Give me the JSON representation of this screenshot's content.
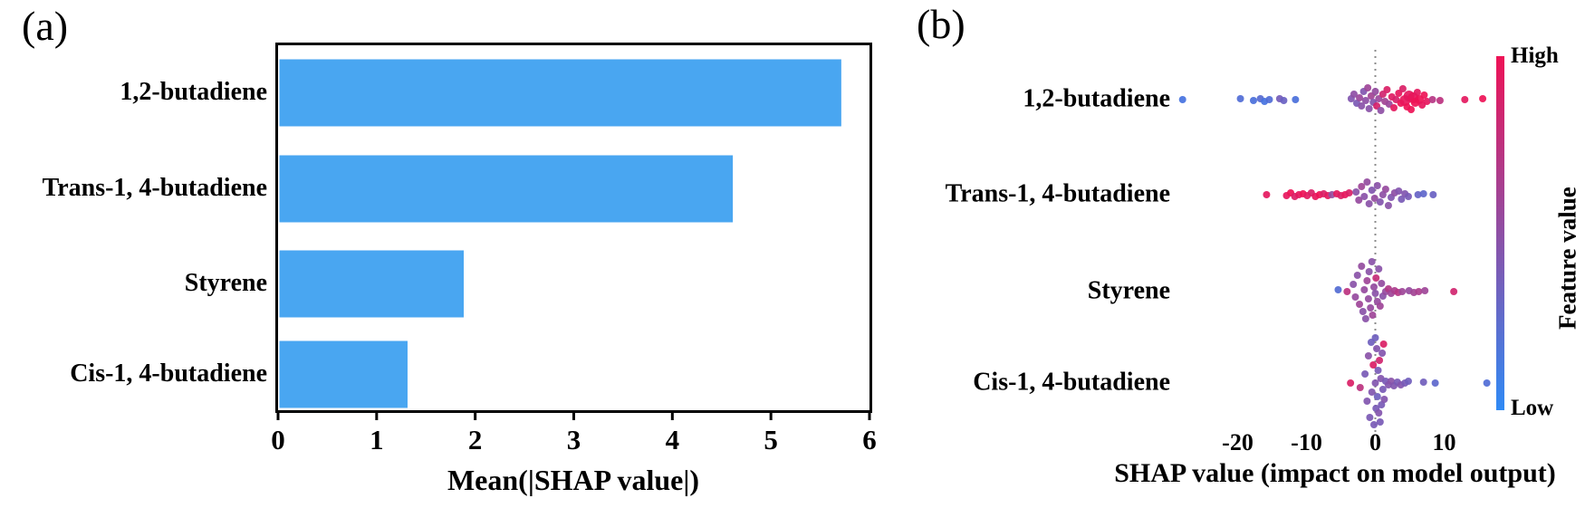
{
  "panel_a": {
    "tag": "(a)",
    "xlabel": "Mean(|SHAP value|)"
  },
  "panel_b": {
    "tag": "(b)",
    "xlabel": "SHAP value (impact on model output)",
    "colorbar": {
      "high": "High",
      "low": "Low",
      "title": "Feature value"
    }
  },
  "colors": {
    "bar_blue": "#49a6f1",
    "dot_low": "#2f7cf0",
    "dot_mid": "#8a52a8",
    "dot_high": "#ee1256",
    "cbar_top": "#ee1256",
    "cbar_mid": "#8a52a8",
    "cbar_bottom": "#2f8af5",
    "zero_line": "#8c8c8c",
    "axis_black": "#000000"
  },
  "chart_data": [
    {
      "type": "bar",
      "orientation": "horizontal",
      "title": "",
      "categories": [
        "1,2-butadiene",
        "Trans-1, 4-butadiene",
        "Styrene",
        "Cis-1, 4-butadiene"
      ],
      "values": [
        5.7,
        4.6,
        1.87,
        1.3
      ],
      "xlabel": "Mean(|SHAP value|)",
      "xlim": [
        0,
        6
      ],
      "xticks": [
        0,
        1,
        2,
        3,
        4,
        5,
        6
      ],
      "grid": false
    },
    {
      "type": "scatter",
      "subtype": "shap-beeswarm",
      "title": "",
      "xlabel": "SHAP value (impact on model output)",
      "xlim": [
        -30,
        18
      ],
      "xticks": [
        -20,
        -10,
        0,
        10
      ],
      "zero_line": true,
      "legend_position": "right-colorbar",
      "categories": [
        "1,2-butadiene",
        "Trans-1, 4-butadiene",
        "Styrene",
        "Cis-1, 4-butadiene"
      ],
      "point_format": "[shap_value, y_jitter_px, feature_value_0to1, optional_radius_px]",
      "series": [
        {
          "name": "1,2-butadiene",
          "points": [
            [
              -28,
              0,
              0.12
            ],
            [
              -19.6,
              -1,
              0.18
            ],
            [
              -17.7,
              1,
              0.15
            ],
            [
              -16.7,
              -1,
              0.22
            ],
            [
              -16.1,
              2,
              0.12
            ],
            [
              -15.4,
              0,
              0.18
            ],
            [
              -13.9,
              -1,
              0.38
            ],
            [
              -13.3,
              1,
              0.32
            ],
            [
              -11.6,
              0,
              0.15
            ],
            [
              -3.5,
              -1,
              0.45
            ],
            [
              -3.1,
              -6,
              0.52
            ],
            [
              -2.7,
              4,
              0.42
            ],
            [
              -2.3,
              -2,
              0.58
            ],
            [
              -2.0,
              7,
              0.5
            ],
            [
              -1.7,
              -9,
              0.45
            ],
            [
              -1.4,
              1,
              0.52
            ],
            [
              -1.1,
              -13,
              0.6
            ],
            [
              -0.9,
              10,
              0.5
            ],
            [
              -0.6,
              -4,
              0.62
            ],
            [
              -0.3,
              3,
              0.48
            ],
            [
              0,
              -9,
              0.55
            ],
            [
              0.2,
              7,
              0.88
            ],
            [
              0.5,
              -1,
              0.58
            ],
            [
              0.8,
              12,
              0.52
            ],
            [
              1.1,
              -6,
              0.85
            ],
            [
              1.4,
              2,
              0.62
            ],
            [
              1.7,
              -11,
              0.9
            ],
            [
              2.0,
              5,
              0.58
            ],
            [
              2.4,
              -3,
              0.92
            ],
            [
              2.7,
              9,
              0.95
            ],
            [
              3.0,
              0,
              0.88
            ],
            [
              3.4,
              -7,
              0.96
            ],
            [
              3.7,
              4,
              1
            ],
            [
              4.0,
              -12,
              0.9
            ],
            [
              4.3,
              1,
              0.97,
              6
            ],
            [
              4.6,
              8,
              1
            ],
            [
              4.9,
              -4,
              0.95,
              6
            ],
            [
              5.2,
              11,
              1
            ],
            [
              5.5,
              -2,
              0.97,
              6
            ],
            [
              5.8,
              3,
              1,
              5
            ],
            [
              6.1,
              -8,
              0.95
            ],
            [
              6.4,
              0,
              1,
              5
            ],
            [
              6.8,
              6,
              0.96
            ],
            [
              7.1,
              -5,
              1
            ],
            [
              7.5,
              2,
              0.96
            ],
            [
              8.3,
              0,
              0.72
            ],
            [
              9.4,
              1,
              0.75
            ],
            [
              13.0,
              0,
              0.95
            ],
            [
              15.6,
              -1,
              1
            ]
          ]
        },
        {
          "name": "Trans-1, 4-butadiene",
          "points": [
            [
              -15.8,
              0,
              0.95
            ],
            [
              -12.9,
              1,
              0.96
            ],
            [
              -12.3,
              -2,
              1
            ],
            [
              -11.7,
              2,
              0.9
            ],
            [
              -11.1,
              0,
              0.95
            ],
            [
              -10.5,
              -1,
              1
            ],
            [
              -9.9,
              1,
              0.94
            ],
            [
              -9.3,
              -2,
              0.9
            ],
            [
              -8.7,
              2,
              0.96
            ],
            [
              -8.1,
              0,
              1
            ],
            [
              -7.5,
              -1,
              0.9
            ],
            [
              -6.9,
              1,
              0.95
            ],
            [
              -6.3,
              0,
              0.55
            ],
            [
              -5.6,
              -1,
              0.95
            ],
            [
              -5.0,
              1,
              0.9
            ],
            [
              -4.4,
              0,
              0.96
            ],
            [
              -3.8,
              -2,
              0.9
            ],
            [
              -2.8,
              -3,
              0.5
            ],
            [
              -2.4,
              6,
              0.56
            ],
            [
              -2.0,
              -9,
              0.6
            ],
            [
              -1.6,
              2,
              0.5
            ],
            [
              -1.2,
              -14,
              0.55
            ],
            [
              -0.9,
              10,
              0.5
            ],
            [
              -0.5,
              -5,
              0.45
            ],
            [
              -0.1,
              4,
              0.55
            ],
            [
              0.3,
              -10,
              0.5
            ],
            [
              0.7,
              8,
              0.46
            ],
            [
              1.1,
              0,
              0.52
            ],
            [
              1.5,
              -6,
              0.56
            ],
            [
              1.9,
              12,
              0.5
            ],
            [
              2.3,
              3,
              0.45
            ],
            [
              2.8,
              -2,
              0.52
            ],
            [
              3.4,
              -4,
              0.46
            ],
            [
              3.8,
              5,
              0.4
            ],
            [
              4.3,
              -1,
              0.45
            ],
            [
              4.8,
              2,
              0.4
            ],
            [
              6.2,
              0,
              0.3
            ],
            [
              7.0,
              -1,
              0.26
            ],
            [
              8.4,
              0,
              0.32
            ]
          ]
        },
        {
          "name": "Styrene",
          "points": [
            [
              -5.4,
              -2,
              0.2
            ],
            [
              -4.1,
              0,
              0.75
            ],
            [
              -3.2,
              -8,
              0.5
            ],
            [
              -2.9,
              6,
              0.56
            ],
            [
              -2.6,
              -18,
              0.5
            ],
            [
              -2.3,
              14,
              0.6
            ],
            [
              -2.0,
              -28,
              0.55
            ],
            [
              -1.8,
              22,
              0.5
            ],
            [
              -1.6,
              -2,
              0.56
            ],
            [
              -1.4,
              30,
              0.5
            ],
            [
              -1.2,
              -12,
              0.6
            ],
            [
              -1.0,
              8,
              0.55
            ],
            [
              -0.9,
              -22,
              0.5
            ],
            [
              -0.7,
              18,
              0.56
            ],
            [
              -0.5,
              -33,
              0.5
            ],
            [
              -0.4,
              26,
              0.6
            ],
            [
              -0.2,
              -5,
              0.55
            ],
            [
              0,
              2,
              0.5
            ],
            [
              0.1,
              -15,
              0.8
            ],
            [
              0.3,
              11,
              0.56
            ],
            [
              0.5,
              -25,
              0.5
            ],
            [
              0.7,
              16,
              0.6
            ],
            [
              0.9,
              -9,
              0.55
            ],
            [
              1.1,
              5,
              0.5
            ],
            [
              1.5,
              0,
              0.56
            ],
            [
              1.9,
              -3,
              0.7
            ],
            [
              2.3,
              2,
              0.6
            ],
            [
              2.8,
              -1,
              0.66
            ],
            [
              3.3,
              1,
              0.72
            ],
            [
              3.9,
              0,
              0.6
            ],
            [
              4.9,
              -1,
              0.56
            ],
            [
              5.6,
              1,
              0.62
            ],
            [
              6.3,
              0,
              0.66
            ],
            [
              7.2,
              -1,
              0.6
            ],
            [
              11.4,
              0,
              0.85
            ]
          ]
        },
        {
          "name": "Cis-1, 4-butadiene",
          "points": [
            [
              -3.6,
              0,
              0.9
            ],
            [
              -2.2,
              5,
              0.75
            ],
            [
              -1.5,
              -10,
              0.4
            ],
            [
              -1.2,
              20,
              0.45
            ],
            [
              -1.0,
              -30,
              0.5
            ],
            [
              -0.8,
              38,
              0.42
            ],
            [
              -0.6,
              -45,
              0.35
            ],
            [
              -0.5,
              10,
              0.45
            ],
            [
              -0.3,
              -20,
              0.9
            ],
            [
              -0.2,
              46,
              0.4
            ],
            [
              0,
              -50,
              0.35
            ],
            [
              0,
              0,
              0.45
            ],
            [
              0.1,
              28,
              0.4
            ],
            [
              0.2,
              -38,
              0.46
            ],
            [
              0.3,
              15,
              0.35
            ],
            [
              0.4,
              -14,
              0.4
            ],
            [
              0.5,
              33,
              0.46
            ],
            [
              0.6,
              -25,
              0.85
            ],
            [
              0.7,
              43,
              0.4
            ],
            [
              0.8,
              -5,
              0.46
            ],
            [
              0.9,
              24,
              0.4
            ],
            [
              1.0,
              -33,
              0.46
            ],
            [
              1.1,
              7,
              0.4
            ],
            [
              1.2,
              -43,
              0.9
            ],
            [
              1.3,
              18,
              0.46
            ],
            [
              1.5,
              -2,
              0.4
            ],
            [
              1.9,
              2,
              0.46
            ],
            [
              2.3,
              -2,
              0.5
            ],
            [
              2.7,
              3,
              0.45
            ],
            [
              3.2,
              -1,
              0.4
            ],
            [
              3.7,
              2,
              0.46
            ],
            [
              4.3,
              0,
              0.4
            ],
            [
              4.8,
              -2,
              0.36
            ],
            [
              7.0,
              -1,
              0.36
            ],
            [
              8.7,
              0,
              0.25
            ],
            [
              16.2,
              0,
              0.18
            ]
          ]
        }
      ]
    }
  ]
}
